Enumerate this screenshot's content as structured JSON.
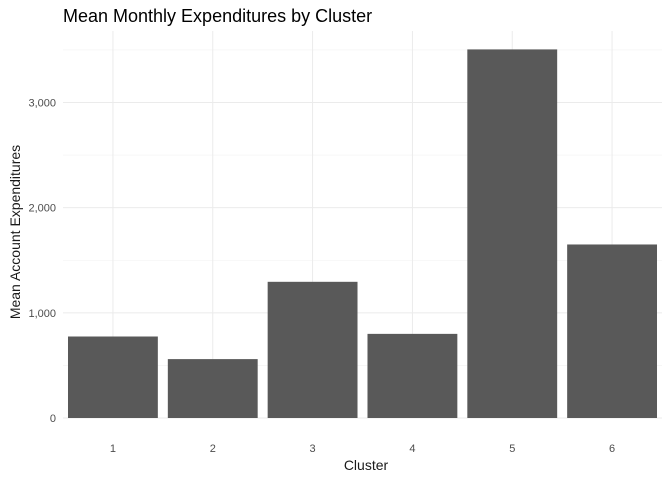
{
  "chart_data": {
    "type": "bar",
    "title": "Mean Monthly Expenditures by Cluster",
    "xlabel": "Cluster",
    "ylabel": "Mean Account Expenditures",
    "categories": [
      "1",
      "2",
      "3",
      "4",
      "5",
      "6"
    ],
    "values": [
      775,
      560,
      1295,
      800,
      3505,
      1650
    ],
    "ylim": [
      0,
      3680
    ],
    "yticks": [
      0,
      1000,
      2000,
      3000
    ],
    "ytick_labels": [
      "0",
      "1,000",
      "2,000",
      "3,000"
    ],
    "minor_yticks": [
      500,
      1500,
      2500,
      3500
    ],
    "grid": true,
    "bar_color": "#595959",
    "grid_color": "#ebebeb",
    "legend": "none"
  }
}
